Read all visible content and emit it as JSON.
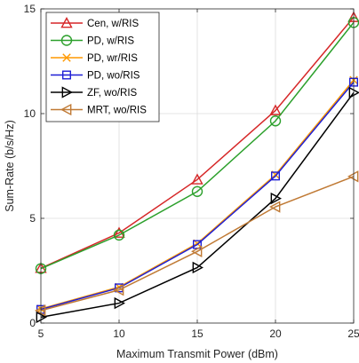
{
  "chart_data": {
    "type": "line",
    "title": "",
    "xlabel": "Maximum Transmit Power (dBm)",
    "ylabel": "Sum-Rate (b/s/Hz)",
    "x": [
      5,
      10,
      15,
      20,
      25
    ],
    "xlim": [
      5,
      25
    ],
    "ylim": [
      0,
      15
    ],
    "xticks": [
      5,
      10,
      15,
      20,
      25
    ],
    "yticks": [
      0,
      5,
      10,
      15
    ],
    "xtick_labels": [
      "5",
      "10",
      "15",
      "20",
      "25"
    ],
    "ytick_labels": [
      "0",
      "5",
      "10",
      "15"
    ],
    "grid": true,
    "legend_position": "top-left",
    "series": [
      {
        "name": "Cen, w/RIS",
        "color": "#d62728",
        "marker": "triangle-up",
        "values": [
          2.62,
          4.3,
          6.85,
          10.15,
          14.6
        ]
      },
      {
        "name": "PD, w/RIS",
        "color": "#2ca02c",
        "marker": "circle",
        "values": [
          2.6,
          4.2,
          6.28,
          9.65,
          14.35
        ]
      },
      {
        "name": "PD, wr/RIS",
        "color": "#ff9900",
        "marker": "x",
        "values": [
          0.68,
          1.72,
          3.8,
          7.08,
          11.6
        ]
      },
      {
        "name": "PD, wo/RIS",
        "color": "#1f1fd6",
        "marker": "square",
        "values": [
          0.65,
          1.68,
          3.75,
          7.02,
          11.5
        ]
      },
      {
        "name": "ZF, wo/RIS",
        "color": "#000000",
        "marker": "triangle-right",
        "values": [
          0.28,
          0.95,
          2.65,
          5.95,
          11.0
        ]
      },
      {
        "name": "MRT, wo/RIS",
        "color": "#c07a35",
        "marker": "triangle-left",
        "values": [
          0.6,
          1.58,
          3.42,
          5.55,
          7.0
        ]
      }
    ]
  }
}
